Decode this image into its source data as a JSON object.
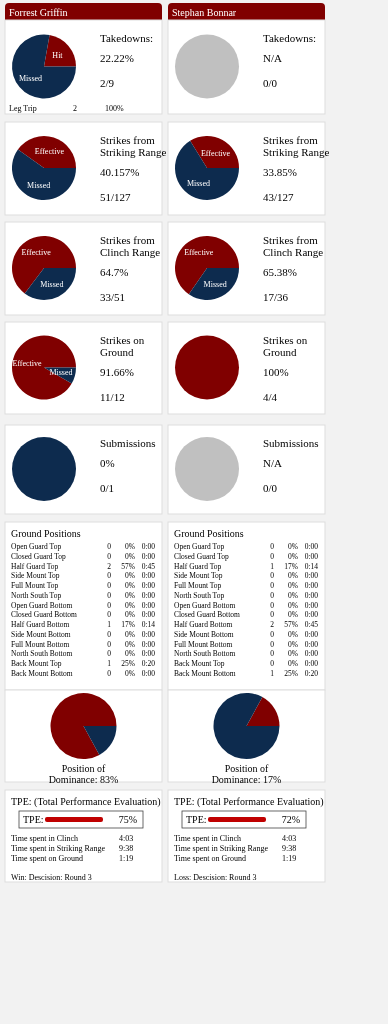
{
  "chart_data": [
    {
      "type": "other",
      "title": "Forrest Griffin"
    },
    {
      "type": "other",
      "title": "Stephan Bonnar"
    },
    {
      "type": "pie",
      "title": "Takedowns:",
      "categories": [
        "Hit",
        "Missed"
      ],
      "values": [
        22.22,
        77.78
      ],
      "colors": [
        "#800000",
        "#0d2b4e"
      ],
      "annotations": [
        "22.22%",
        "2/9",
        "Leg Trip",
        "2",
        "100%"
      ]
    },
    {
      "type": "pie",
      "title": "Takedowns:",
      "categories": [
        null
      ],
      "values": [
        100
      ],
      "colors": [
        "#c0c0c0"
      ],
      "annotations": [
        "N/A",
        "0/0"
      ]
    },
    {
      "type": "pie",
      "title": "Strikes from Striking Range",
      "categories": [
        "Effective",
        "Missed"
      ],
      "values": [
        40.157,
        59.843
      ],
      "colors": [
        "#800000",
        "#0d2b4e"
      ],
      "annotations": [
        "40.157%",
        "51/127"
      ]
    },
    {
      "type": "pie",
      "title": "Strikes from Striking Range",
      "categories": [
        "Effective",
        "Missed"
      ],
      "values": [
        33.85,
        66.15
      ],
      "colors": [
        "#800000",
        "#0d2b4e"
      ],
      "annotations": [
        "33.85%",
        "43/127"
      ]
    },
    {
      "type": "pie",
      "title": "Strikes from Clinch Range",
      "categories": [
        "Effective",
        "Missed"
      ],
      "values": [
        64.7,
        35.3
      ],
      "colors": [
        "#800000",
        "#0d2b4e"
      ],
      "annotations": [
        "64.7%",
        "33/51"
      ]
    },
    {
      "type": "pie",
      "title": "Strikes from Clinch Range",
      "categories": [
        "Effective",
        "Missed"
      ],
      "values": [
        65.38,
        34.62
      ],
      "colors": [
        "#800000",
        "#0d2b4e"
      ],
      "annotations": [
        "65.38%",
        "17/36"
      ]
    },
    {
      "type": "pie",
      "title": "Strikes on Ground",
      "categories": [
        "Effective",
        "Missed"
      ],
      "values": [
        91.66,
        8.34
      ],
      "colors": [
        "#800000",
        "#0d2b4e"
      ],
      "annotations": [
        "91.66%",
        "11/12"
      ]
    },
    {
      "type": "pie",
      "title": "Strikes on Ground",
      "categories": [
        null
      ],
      "values": [
        100
      ],
      "colors": [
        "#800000"
      ],
      "annotations": [
        "100%",
        "4/4"
      ]
    },
    {
      "type": "pie",
      "title": "Submissions",
      "categories": [
        null
      ],
      "values": [
        100
      ],
      "colors": [
        "#0d2b4e"
      ],
      "annotations": [
        "0%",
        "0/1"
      ]
    },
    {
      "type": "pie",
      "title": "Submissions",
      "categories": [
        null
      ],
      "values": [
        100
      ],
      "colors": [
        "#c0c0c0"
      ],
      "annotations": [
        "N/A",
        "0/0"
      ]
    },
    {
      "type": "other",
      "title": "Ground Positions",
      "annotations": [
        "Open Guard Top",
        "0",
        "0%",
        "0:00",
        "Closed Guard Top",
        "0",
        "0%",
        "0:00",
        "Half Guard Top",
        "2",
        "57%",
        "0:45",
        "Side Mount Top",
        "0",
        "0%",
        "0:00",
        "Full Mount Top",
        "0",
        "0%",
        "0:00",
        "North South Top",
        "0",
        "0%",
        "0:00",
        "Open Guard Bottom",
        "0",
        "0%",
        "0:00",
        "Closed Guard Bottom",
        "0",
        "0%",
        "0:00",
        "Half Guard Bottom",
        "1",
        "17%",
        "0:14",
        "Side Mount Bottom",
        "0",
        "0%",
        "0:00",
        "Full Mount Bottom",
        "0",
        "0%",
        "0:00",
        "North South Bottom",
        "0",
        "0%",
        "0:00",
        "Back Mount Top",
        "1",
        "25%",
        "0:20",
        "Back Mount Bottom",
        "0",
        "0%",
        "0:00"
      ]
    },
    {
      "type": "other",
      "title": "Ground Positions",
      "annotations": [
        "Open Guard Top",
        "0",
        "0%",
        "0:00",
        "Closed Guard Top",
        "0",
        "0%",
        "0:00",
        "Half Guard Top",
        "1",
        "17%",
        "0:14",
        "Side Mount Top",
        "0",
        "0%",
        "0:00",
        "Full Mount Top",
        "0",
        "0%",
        "0:00",
        "North South Top",
        "0",
        "0%",
        "0:00",
        "Open Guard Bottom",
        "0",
        "0%",
        "0:00",
        "Closed Guard Bottom",
        "0",
        "0%",
        "0:00",
        "Half Guard Bottom",
        "2",
        "57%",
        "0:45",
        "Side Mount Bottom",
        "0",
        "0%",
        "0:00",
        "Full Mount Bottom",
        "0",
        "0%",
        "0:00",
        "North South Bottom",
        "0",
        "0%",
        "0:00",
        "Back Mount Top",
        "0",
        "0%",
        "0:00",
        "Back Mount Bottom",
        "1",
        "25%",
        "0:20"
      ]
    },
    {
      "type": "pie",
      "title": "Position of Dominance: 83%",
      "categories": [
        null,
        null
      ],
      "values": [
        83,
        17
      ],
      "colors": [
        "#800000",
        "#0d2b4e"
      ]
    },
    {
      "type": "pie",
      "title": "Position of Dominance: 17%",
      "categories": [
        null,
        null
      ],
      "values": [
        17,
        83
      ],
      "colors": [
        "#800000",
        "#0d2b4e"
      ]
    },
    {
      "type": "other",
      "title": "TPE: (Total Performance Evaluation)",
      "annotations": [
        "TPE:",
        "75%",
        "Time spent in Clinch",
        "4:03",
        "Time spent in Striking Range",
        "9:38",
        "Time spent on Ground",
        "1:19",
        "Win: Descision: Round 3"
      ]
    },
    {
      "type": "other",
      "title": "TPE: (Total Performance Evaluation)",
      "annotations": [
        "TPE:",
        "72%",
        "Time spent in Clinch",
        "4:03",
        "Time spent in Striking Range",
        "9:38",
        "Time spent on Ground",
        "1:19",
        "Loss: Descision: Round 3"
      ]
    }
  ]
}
